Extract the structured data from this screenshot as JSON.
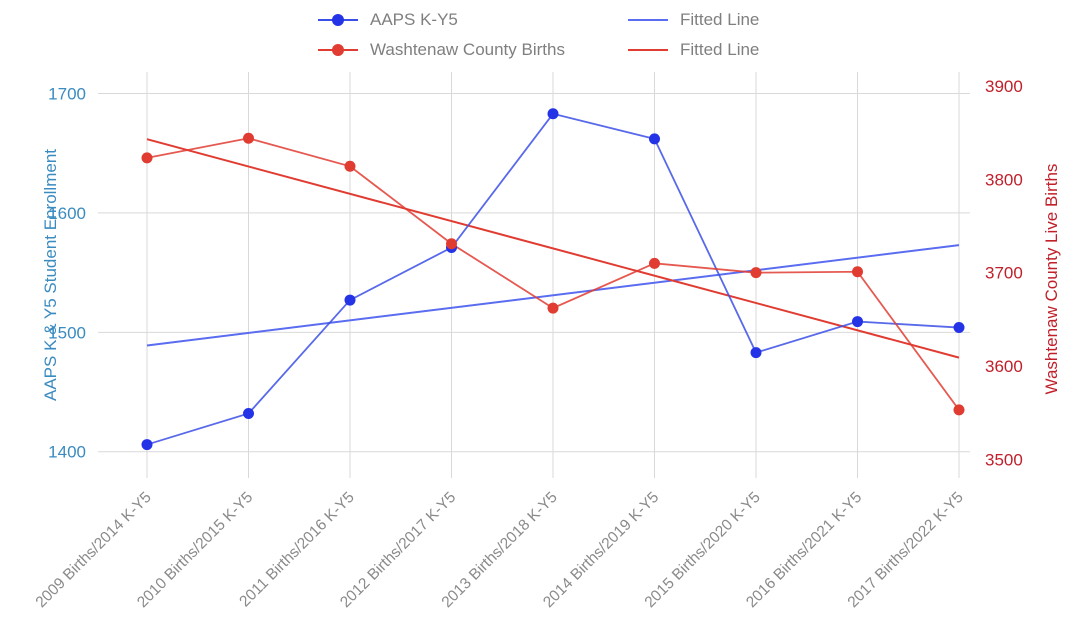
{
  "chart_data": {
    "type": "line",
    "categories": [
      "2009 Births/2014 K-Y5",
      "2010 Births/2015 K-Y5",
      "2011 Births/2016 K-Y5",
      "2012 Births/2017 K-Y5",
      "2013 Births/2018 K-Y5",
      "2014 Births/2019 K-Y5",
      "2015 Births/2020 K-Y5",
      "2016 Births/2021 K-Y5",
      "2017 Births/2022 K-Y5"
    ],
    "series": [
      {
        "name": "AAPS K-Y5",
        "axis": "left",
        "color": "#3b4fe6",
        "values": [
          1406,
          1432,
          1527,
          1571,
          1683,
          1662,
          1483,
          1509,
          1504
        ]
      },
      {
        "name": "Washtenaw County Births",
        "axis": "right",
        "color": "#e03c31",
        "values": [
          3823,
          3844,
          3814,
          3731,
          3662,
          3710,
          3700,
          3701,
          3553
        ]
      }
    ],
    "fitted_lines": [
      {
        "name": "Fitted Line",
        "axis": "left",
        "color": "#5a6cf0",
        "start": 1489,
        "end": 1573
      },
      {
        "name": "Fitted Line",
        "axis": "right",
        "color": "#e03c31",
        "start": 3843,
        "end": 3609
      }
    ],
    "legend": [
      {
        "label": "AAPS K-Y5",
        "color": "#3b4fe6",
        "marker": true
      },
      {
        "label": "Washtenaw County Births",
        "color": "#e03c31",
        "marker": true
      },
      {
        "label": "Fitted Line",
        "color": "#5a6cf0",
        "marker": false
      },
      {
        "label": "Fitted Line",
        "color": "#e03c31",
        "marker": false
      }
    ],
    "ylabel_left": "AAPS K & Y5 Student Enrollment",
    "ylabel_right": "Washtenaw County Live Births",
    "ylim_left": [
      1378,
      1718
    ],
    "ylim_right": [
      3480,
      3915
    ],
    "yticks_left": [
      1400,
      1500,
      1600,
      1700
    ],
    "yticks_right": [
      3500,
      3600,
      3700,
      3800,
      3900
    ],
    "left_axis_color": "#3a8bc0",
    "right_axis_color": "#c0202a",
    "grid": true,
    "legend_position": "top"
  }
}
